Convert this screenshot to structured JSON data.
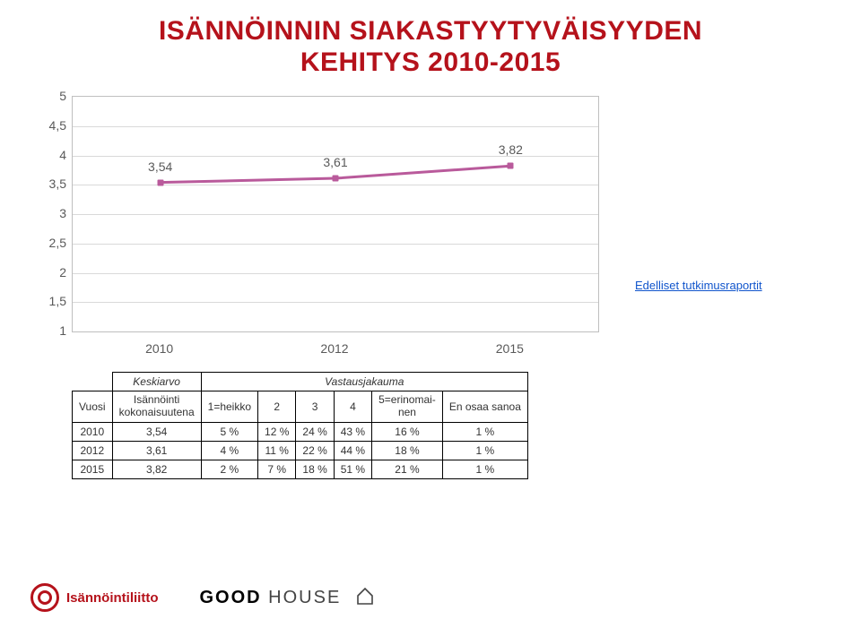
{
  "title_line1": "ISÄNNÖINNIN SIAKASTYYTYVÄISYYDEN",
  "title_line2": "KEHITYS 2010-2015",
  "chart": {
    "type": "line",
    "categories": [
      "2010",
      "2012",
      "2015"
    ],
    "values": [
      3.54,
      3.61,
      3.82
    ],
    "value_labels": [
      "3,54",
      "3,61",
      "3,82"
    ],
    "series_color": "#b95a9b",
    "marker_color": "#b95a9b",
    "ylim": [
      1,
      5
    ],
    "ytick_step": 0.5,
    "ylabels": [
      "1",
      "1,5",
      "2",
      "2,5",
      "3",
      "3,5",
      "4",
      "4,5",
      "5"
    ],
    "background_color": "#ffffff",
    "grid_color": "#d9d9d9",
    "border_color": "#bfbfbf",
    "axis_label_color": "#595959",
    "axis_fontsize": 14,
    "value_label_fontsize": 14,
    "line_width": 3,
    "marker_size": 7
  },
  "side_link": "Edelliset tutkimusraportit",
  "table": {
    "keski": "Keskiarvo",
    "vastaus": "Vastausjakauma",
    "col_vuosi": "Vuosi",
    "col_isann": "Isännöinti\nkokonaisuutena",
    "col_1": "1=heikko",
    "col_2": "2",
    "col_3": "3",
    "col_4": "4",
    "col_5": "5=erinomai-\nnen",
    "col_eos": "En osaa sanoa",
    "rows": [
      {
        "y": "2010",
        "avg": "3,54",
        "c1": "5 %",
        "c2": "12 %",
        "c3": "24 %",
        "c4": "43 %",
        "c5": "16 %",
        "eos": "1 %"
      },
      {
        "y": "2012",
        "avg": "3,61",
        "c1": "4 %",
        "c2": "11 %",
        "c3": "22 %",
        "c4": "44 %",
        "c5": "18 %",
        "eos": "1 %"
      },
      {
        "y": "2015",
        "avg": "3,82",
        "c1": "2 %",
        "c2": "7 %",
        "c3": "18 %",
        "c4": "51 %",
        "c5": "21 %",
        "eos": "1 %"
      }
    ]
  },
  "footer": {
    "brand1": "Isännöintiliitto",
    "brand2a": "GOOD",
    "brand2b": " HOUSE"
  }
}
